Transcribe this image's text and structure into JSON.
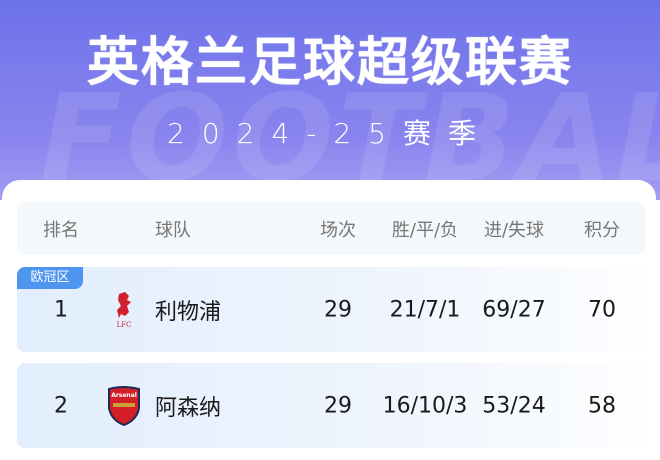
{
  "header": {
    "title": "英格兰足球超级联赛",
    "season": "2024-25赛季",
    "watermark": "FOOTBALL"
  },
  "table": {
    "columns": {
      "rank": "排名",
      "team": "球队",
      "played": "场次",
      "wdl": "胜/平/负",
      "goals": "进/失球",
      "points": "积分"
    },
    "rows": [
      {
        "badge": "欧冠区",
        "rank": "1",
        "team": "利物浦",
        "logo": "liverpool-crest",
        "logo_text": "LFC",
        "played": "29",
        "wdl": "21/7/1",
        "goals": "69/27",
        "points": "70"
      },
      {
        "rank": "2",
        "team": "阿森纳",
        "logo": "arsenal-crest",
        "logo_text": "Arsenal",
        "played": "29",
        "wdl": "16/10/3",
        "goals": "53/24",
        "points": "58"
      }
    ]
  },
  "colors": {
    "header": "#6d72ea",
    "badge": "#4e95ef",
    "row": "#e2eefd"
  }
}
